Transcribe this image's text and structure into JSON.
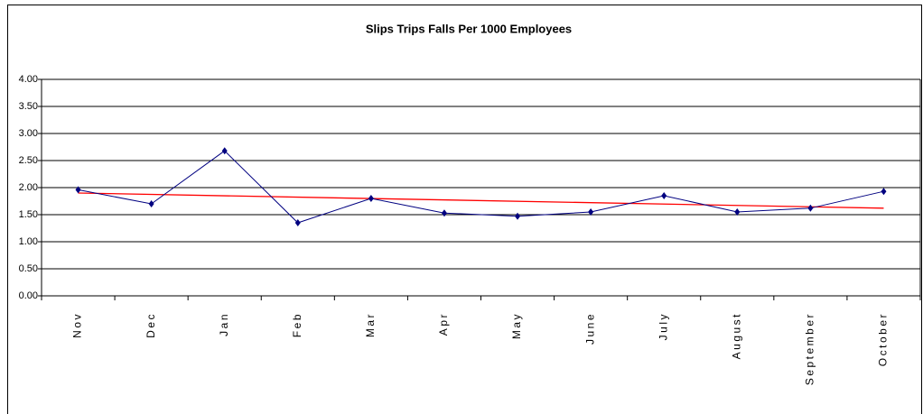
{
  "chart_data": {
    "type": "line",
    "title": "Slips Trips Falls Per 1000 Employees",
    "categories": [
      "Nov",
      "Dec",
      "Jan",
      "Feb",
      "Mar",
      "Apr",
      "May",
      "June",
      "July",
      "August",
      "September",
      "October"
    ],
    "series": [
      {
        "color": "#000080",
        "values": [
          1.96,
          1.7,
          2.68,
          1.35,
          1.8,
          1.53,
          1.47,
          1.55,
          1.85,
          1.55,
          1.62,
          1.93
        ]
      }
    ],
    "trendline": {
      "color": "#ff0000",
      "start": 1.9,
      "end": 1.62
    },
    "ylim": [
      0,
      4
    ],
    "yticks": [
      {
        "value": 0,
        "label": "0.00"
      },
      {
        "value": 0.5,
        "label": "0.50"
      },
      {
        "value": 1,
        "label": "1.00"
      },
      {
        "value": 1.5,
        "label": "1.50"
      },
      {
        "value": 2,
        "label": "2.00"
      },
      {
        "value": 2.5,
        "label": "2.50"
      },
      {
        "value": 3,
        "label": "3.00"
      },
      {
        "value": 3.5,
        "label": "3.50"
      },
      {
        "value": 4,
        "label": "4.00"
      }
    ],
    "grid": true
  }
}
